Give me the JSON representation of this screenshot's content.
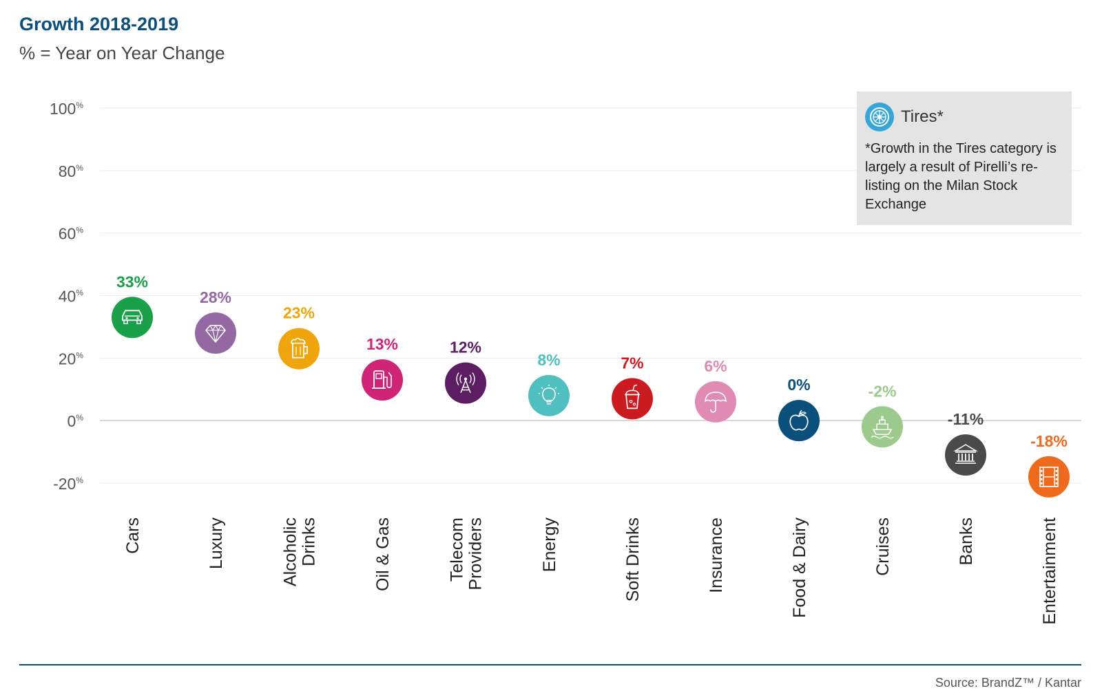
{
  "title": "Growth 2018-2019",
  "subtitle": "% = Year on Year Change",
  "note": {
    "title": "Tires*",
    "icon": "tire-icon",
    "color": "#34a7d8",
    "text": "*Growth in the Tires category is largely a result of Pirelli’s re-listing on the Milan Stock Exchange"
  },
  "source": "Source: BrandZ™ / Kantar",
  "chart_data": {
    "type": "scatter",
    "yticks": [
      {
        "value": 100,
        "num": "100",
        "unit": "%"
      },
      {
        "value": 80,
        "num": "80",
        "unit": "%"
      },
      {
        "value": 60,
        "num": "60",
        "unit": "%"
      },
      {
        "value": 40,
        "num": "40",
        "unit": "%"
      },
      {
        "value": 20,
        "num": "20",
        "unit": "%"
      },
      {
        "value": 0,
        "num": "0",
        "unit": "%"
      },
      {
        "value": -20,
        "num": "-20",
        "unit": "%"
      }
    ],
    "ylim": [
      -20,
      100
    ],
    "grid": true,
    "points": [
      {
        "category": [
          "Cars"
        ],
        "value": 33,
        "label": "33%",
        "color": "#19a049",
        "icon": "car-icon"
      },
      {
        "category": [
          "Luxury"
        ],
        "value": 28,
        "label": "28%",
        "color": "#9468a3",
        "icon": "diamond-icon"
      },
      {
        "category": [
          "Alcoholic",
          "Drinks"
        ],
        "value": 23,
        "label": "23%",
        "color": "#f0a50c",
        "icon": "beer-mug-icon"
      },
      {
        "category": [
          "Oil & Gas"
        ],
        "value": 13,
        "label": "13%",
        "color": "#d02577",
        "icon": "fuel-pump-icon"
      },
      {
        "category": [
          "Telecom",
          "Providers"
        ],
        "value": 12,
        "label": "12%",
        "color": "#5d1d62",
        "icon": "antenna-icon"
      },
      {
        "category": [
          "Energy"
        ],
        "value": 8,
        "label": "8%",
        "color": "#4fbfbf",
        "icon": "light-bulb-icon"
      },
      {
        "category": [
          "Soft Drinks"
        ],
        "value": 7,
        "label": "7%",
        "color": "#cc1b20",
        "icon": "soda-cup-icon"
      },
      {
        "category": [
          "Insurance"
        ],
        "value": 6,
        "label": "6%",
        "color": "#e08bb4",
        "icon": "umbrella-icon"
      },
      {
        "category": [
          "Food & Dairy"
        ],
        "value": 0,
        "label": "0%",
        "color": "#0b4f7c",
        "icon": "apple-icon"
      },
      {
        "category": [
          "Cruises"
        ],
        "value": -2,
        "label": "-2%",
        "color": "#9cca8c",
        "icon": "ship-icon"
      },
      {
        "category": [
          "Banks"
        ],
        "value": -11,
        "label": "-11%",
        "color": "#4a4a4a",
        "icon": "bank-icon"
      },
      {
        "category": [
          "Entertainment"
        ],
        "value": -18,
        "label": "-18%",
        "color": "#ef6a1c",
        "icon": "film-icon"
      }
    ]
  }
}
